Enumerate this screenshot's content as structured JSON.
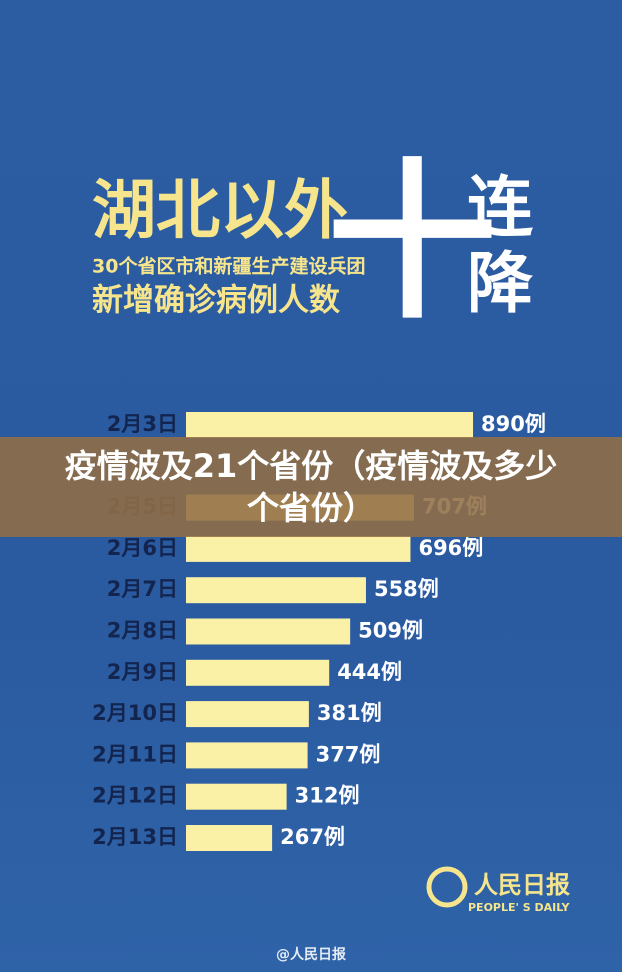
{
  "header": {
    "title": "湖北以外",
    "subtitle": "30个省区市和新疆生产建设兵团",
    "subtitle2": "新增确诊病例人数",
    "big": "十",
    "side": [
      "连",
      "降"
    ]
  },
  "chart_data": {
    "type": "bar",
    "orientation": "horizontal",
    "color": "#fbf1a6",
    "categories": [
      "2月3日",
      null,
      "2月5日",
      "2月6日",
      "2月7日",
      "2月8日",
      "2月9日",
      "2月10日",
      "2月11日",
      "2月12日",
      "2月13日"
    ],
    "values": [
      890,
      null,
      707,
      696,
      558,
      509,
      444,
      381,
      377,
      312,
      267
    ],
    "value_labels": [
      "890例",
      null,
      "707例",
      "696例",
      "558例",
      "509例",
      "444例",
      "381例",
      "377例",
      "312例",
      "267例"
    ]
  },
  "banner": "疫情波及21个省份（疫情波及多少个省份）",
  "logo": {
    "name": "人民日报",
    "english": "PEOPLE' S DAILY"
  },
  "footer": "@人民日报"
}
